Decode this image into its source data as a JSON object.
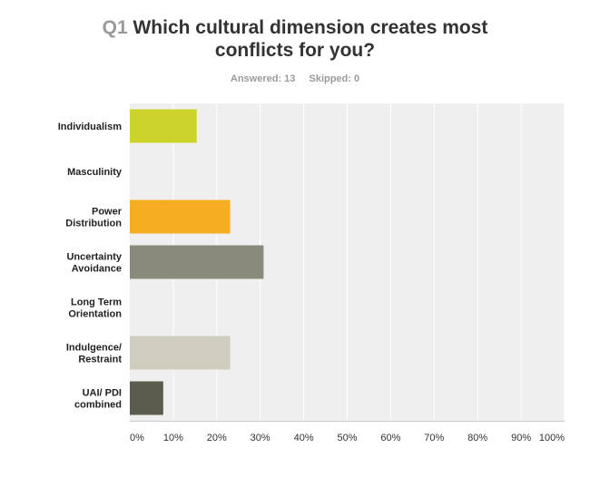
{
  "question": {
    "number": "Q1",
    "text_line1": "Which cultural dimension creates most",
    "text_line2": "conflicts for you?"
  },
  "stats": {
    "answered": "Answered: 13",
    "skipped": "Skipped: 0"
  },
  "chart_data": {
    "type": "bar",
    "orientation": "horizontal",
    "categories": [
      [
        "Individualism"
      ],
      [
        "Masculinity"
      ],
      [
        "Power",
        "Distribution"
      ],
      [
        "Uncertainty",
        "Avoidance"
      ],
      [
        "Long Term",
        "Orientation"
      ],
      [
        "Indulgence/",
        "Restraint"
      ],
      [
        "UAI/ PDI",
        "combined"
      ]
    ],
    "values": [
      15.38,
      0,
      23.08,
      30.77,
      0,
      23.08,
      7.69
    ],
    "colors": [
      "#ccd42b",
      "#cccccc",
      "#f5ae20",
      "#8a8a7b",
      "#cccccc",
      "#cfcebe",
      "#5c5c4d"
    ],
    "xlim": [
      0,
      100
    ],
    "x_ticks": [
      "0%",
      "10%",
      "20%",
      "30%",
      "40%",
      "50%",
      "60%",
      "70%",
      "80%",
      "90%",
      "100%"
    ],
    "grid": true,
    "background": "#efefef"
  }
}
